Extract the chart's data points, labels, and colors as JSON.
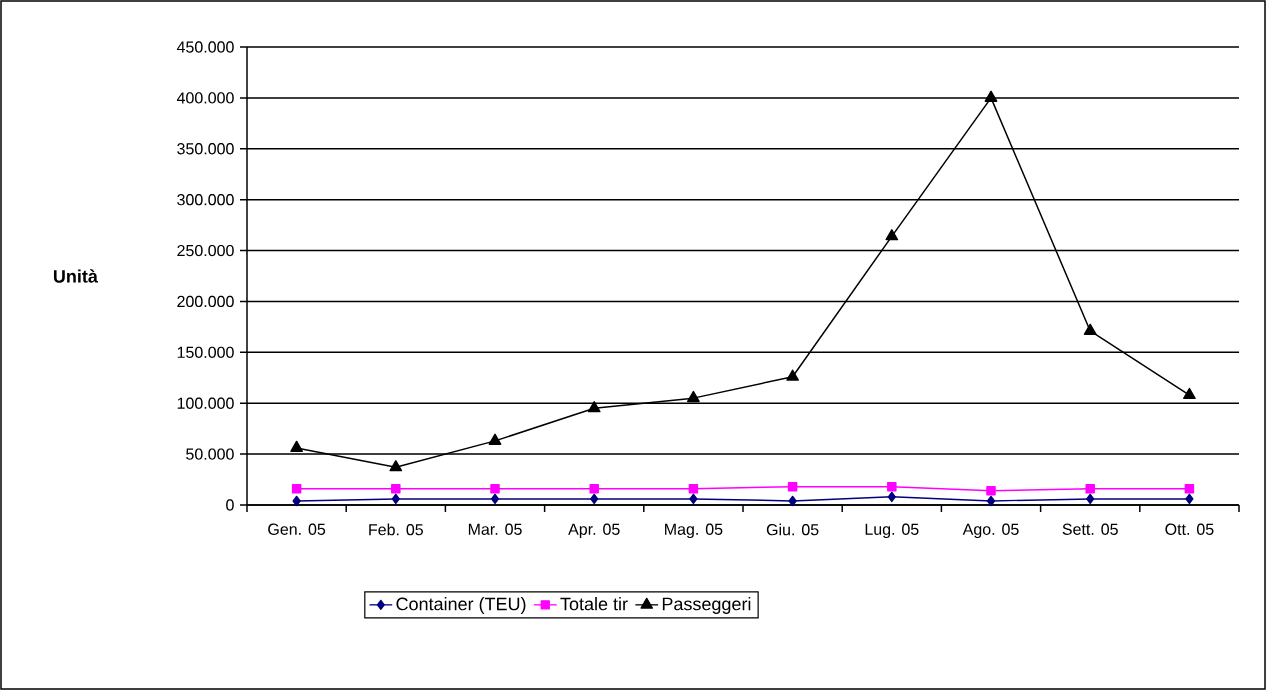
{
  "chart_data": {
    "type": "line",
    "ylabel": "Unità",
    "categories": [
      "Gen. 05",
      "Feb. 05",
      "Mar. 05",
      "Apr. 05",
      "Mag. 05",
      "Giu. 05",
      "Lug. 05",
      "Ago. 05",
      "Sett. 05",
      "Ott. 05"
    ],
    "series": [
      {
        "name": "Container (TEU)",
        "color": "#000080",
        "marker": "diamond",
        "values": [
          4000,
          6000,
          6000,
          6000,
          6000,
          4000,
          8000,
          4000,
          6000,
          6000
        ]
      },
      {
        "name": "Totale tir",
        "color": "#ff00ff",
        "marker": "square",
        "values": [
          16000,
          16000,
          16000,
          16000,
          16000,
          18000,
          18000,
          14000,
          16000,
          16000
        ]
      },
      {
        "name": "Passeggeri",
        "color": "#000000",
        "marker": "triangle",
        "values": [
          56000,
          37000,
          63000,
          95000,
          105000,
          126000,
          264000,
          400000,
          171000,
          108000
        ]
      }
    ],
    "ylim": [
      0,
      450000
    ],
    "yticks": [
      {
        "value": 0,
        "label": "0"
      },
      {
        "value": 50000,
        "label": "50.000"
      },
      {
        "value": 100000,
        "label": "100.000"
      },
      {
        "value": 150000,
        "label": "150.000"
      },
      {
        "value": 200000,
        "label": "200.000"
      },
      {
        "value": 250000,
        "label": "250.000"
      },
      {
        "value": 300000,
        "label": "300.000"
      },
      {
        "value": 350000,
        "label": "350.000"
      },
      {
        "value": 400000,
        "label": "400.000"
      },
      {
        "value": 450000,
        "label": "450.000"
      }
    ],
    "grid": "y",
    "legend": "bottom",
    "line_style": "solid"
  }
}
